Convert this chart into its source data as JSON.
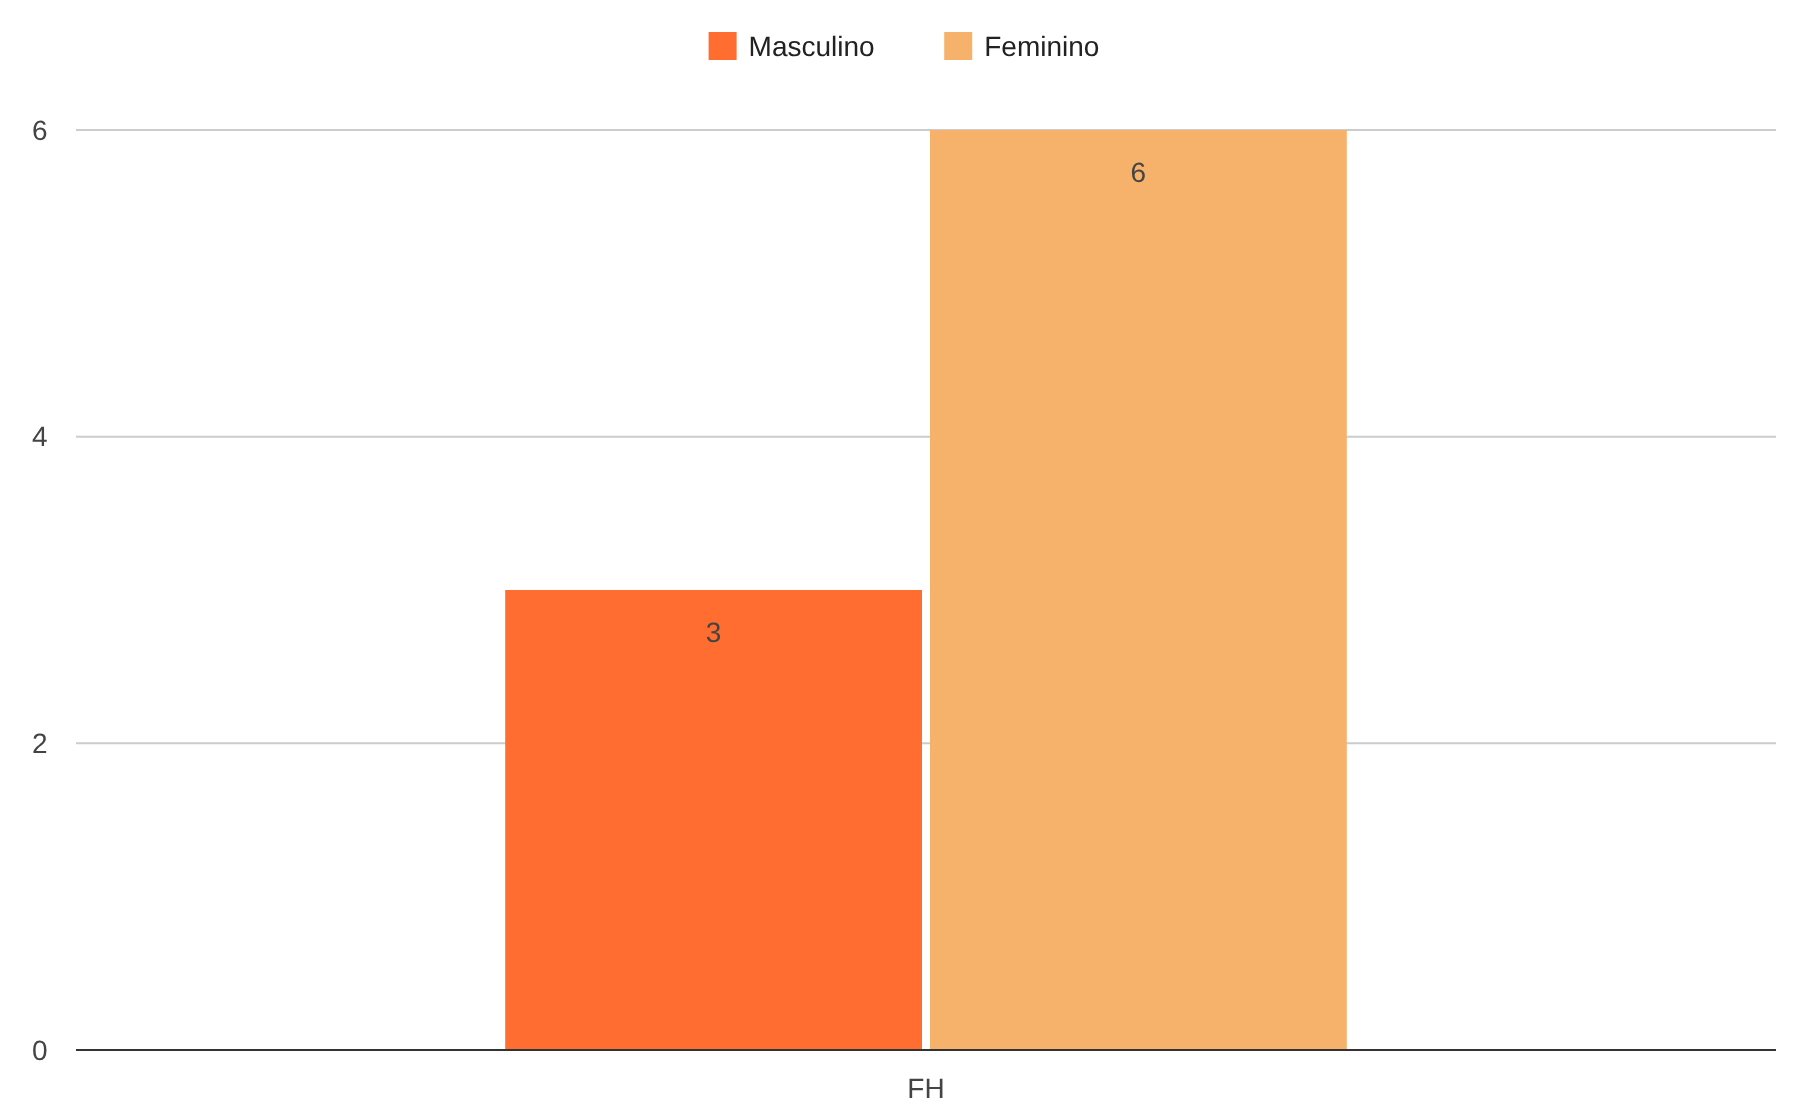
{
  "chart_data": {
    "type": "bar",
    "categories": [
      "FH"
    ],
    "series": [
      {
        "name": "Masculino",
        "color": "#ff6d31",
        "values": [
          3
        ]
      },
      {
        "name": "Feminino",
        "color": "#f6b26b",
        "values": [
          6
        ]
      }
    ],
    "ylim": [
      0,
      6
    ],
    "yticks": [
      0,
      2,
      4,
      6
    ],
    "grid": "y",
    "legend": "top",
    "data_labels": true
  }
}
